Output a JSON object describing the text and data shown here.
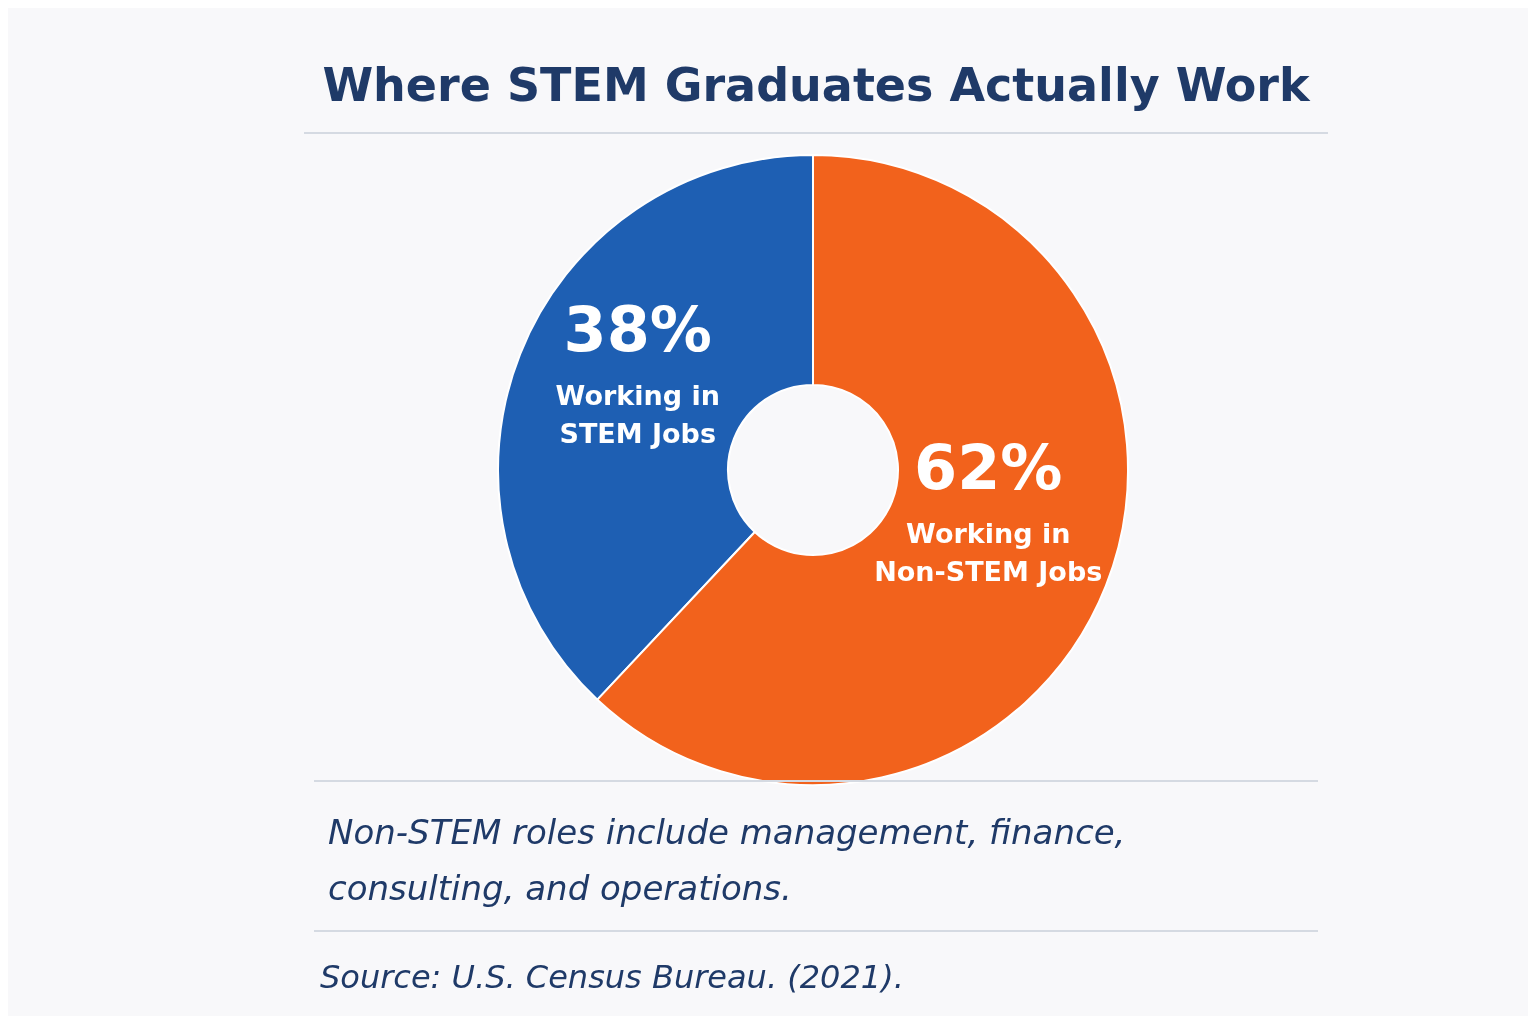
{
  "chart_data": {
    "type": "donut",
    "title": "Where STEM Graduates Actually Work",
    "categories": [
      "Working in STEM Jobs",
      "Working in Non-STEM Jobs"
    ],
    "values": [
      38,
      62
    ],
    "value_labels": [
      "38%",
      "62%"
    ],
    "colors": [
      "#1e5fb3",
      "#f2621c"
    ],
    "annotations": [
      "Non-STEM roles include management, finance, consulting, and operations.",
      "Source: U.S. Census Bureau. (2021)."
    ]
  }
}
